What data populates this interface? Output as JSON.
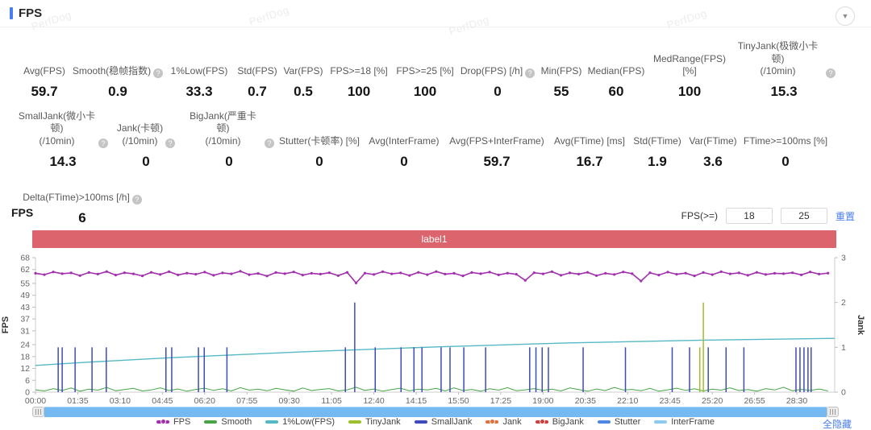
{
  "header": {
    "title": "FPS"
  },
  "watermark": {
    "text": "PerfDog"
  },
  "collapse_icon": "▼",
  "stats": {
    "rows": [
      {
        "items": [
          {
            "label": "Avg(FPS)",
            "value": "59.7"
          },
          {
            "label": "Smooth(稳帧指数)",
            "help": true,
            "value": "0.9"
          },
          {
            "label": "1%Low(FPS)",
            "value": "33.3"
          },
          {
            "label": "Std(FPS)",
            "value": "0.7"
          },
          {
            "label": "Var(FPS)",
            "value": "0.5"
          },
          {
            "label": "FPS>=18 [%]",
            "value": "100"
          },
          {
            "label": "FPS>=25 [%]",
            "value": "100"
          },
          {
            "label": "Drop(FPS) [/h]",
            "help": true,
            "value": "0"
          },
          {
            "label": "Min(FPS)",
            "value": "55"
          },
          {
            "label": "Median(FPS)",
            "value": "60"
          },
          {
            "label": "MedRange(FPS)[%]",
            "value": "100"
          },
          {
            "label": "TinyJank(极微小卡顿)\n(/10min)",
            "help": true,
            "value": "15.3"
          }
        ]
      },
      {
        "items": [
          {
            "label": "SmallJank(微小卡顿)\n(/10min)",
            "help": true,
            "value": "14.3"
          },
          {
            "label": "Jank(卡顿)\n(/10min)",
            "help": true,
            "value": "0"
          },
          {
            "label": "BigJank(严重卡顿)\n(/10min)",
            "help": true,
            "value": "0"
          },
          {
            "label": "Stutter(卡顿率) [%]",
            "value": "0"
          },
          {
            "label": "Avg(InterFrame)",
            "value": "0"
          },
          {
            "label": "Avg(FPS+InterFrame)",
            "value": "59.7"
          },
          {
            "label": "Avg(FTime) [ms]",
            "value": "16.7"
          },
          {
            "label": "Std(FTime)",
            "value": "1.9"
          },
          {
            "label": "Var(FTime)",
            "value": "3.6"
          },
          {
            "label": "FTime>=100ms [%]",
            "value": "0"
          }
        ]
      },
      {
        "items": [
          {
            "label": "Delta(FTime)>100ms [/h]",
            "help": true,
            "value": "6"
          }
        ]
      }
    ]
  },
  "chart_section": {
    "title": "FPS",
    "filter_label": "FPS(>=)",
    "filter_inputs": [
      "18",
      "25"
    ],
    "reset_label": "重置",
    "hide_all_label": "全隐藏",
    "banner": {
      "text": "label1",
      "color": "#dc656d"
    }
  },
  "chart_data": {
    "type": "line",
    "title": "FPS / Jank timeline",
    "left_axis": {
      "label": "FPS",
      "ticks": [
        68,
        62,
        55,
        49,
        43,
        37,
        31,
        24,
        18,
        12,
        6,
        0
      ],
      "range": [
        0,
        68
      ]
    },
    "right_axis": {
      "label": "Jank",
      "ticks": [
        3,
        2,
        1,
        0
      ],
      "range": [
        0,
        3
      ]
    },
    "x_ticks": [
      "00:00",
      "01:35",
      "03:10",
      "04:45",
      "06:20",
      "07:55",
      "09:30",
      "11:05",
      "12:40",
      "14:15",
      "15:50",
      "17:25",
      "19:00",
      "20:35",
      "22:10",
      "23:45",
      "25:20",
      "26:55",
      "28:30"
    ],
    "x_tick_interval_s": 95,
    "x_range_seconds": [
      0,
      1795
    ],
    "grid": false,
    "legend_position": "bottom",
    "series": [
      {
        "name": "FPS",
        "color": "#a22fae",
        "axis": "left",
        "type": "noisy-line",
        "dot": true,
        "sample_step_s": 20,
        "values": [
          60.1,
          59.4,
          60.8,
          59.9,
          60.3,
          58.9,
          60.5,
          59.7,
          61.0,
          59.2,
          60.4,
          59.8,
          58.8,
          60.6,
          59.5,
          60.9,
          59.3,
          60.2,
          59.6,
          60.7,
          59.1,
          60.3,
          59.8,
          61.1,
          59.4,
          60.0,
          58.7,
          60.5,
          59.9,
          60.8,
          59.2,
          60.1,
          59.7,
          60.4,
          58.9,
          60.6,
          55.2,
          60.2,
          59.5,
          60.9,
          59.8,
          60.3,
          59.0,
          60.6,
          59.4,
          61.0,
          59.7,
          60.1,
          58.8,
          60.5,
          59.9,
          60.7,
          59.3,
          60.2,
          59.6,
          56.5,
          60.4,
          59.8,
          60.9,
          59.1,
          60.3,
          59.7,
          60.6,
          58.9,
          60.1,
          59.5,
          60.8,
          59.9,
          56.2,
          60.4,
          59.2,
          60.7,
          59.6,
          60.2,
          58.8,
          60.5,
          59.4,
          60.9,
          59.8,
          60.3,
          59.1,
          60.6,
          59.5,
          60.1,
          59.9,
          60.4,
          59.3,
          60.8,
          59.7,
          60.2
        ]
      },
      {
        "name": "Smooth",
        "color": "#47a447",
        "axis": "left",
        "type": "grass",
        "sample_step_s": 20,
        "values": [
          1.2,
          0.6,
          1.8,
          0.9,
          2.1,
          0.5,
          1.5,
          1.0,
          2.4,
          0.7,
          1.3,
          1.9,
          0.6,
          1.1,
          2.2,
          0.8,
          1.6,
          0.5,
          1.4,
          2.0,
          0.9,
          1.7,
          0.6,
          2.3,
          1.0,
          1.5,
          0.7,
          1.9,
          1.2,
          0.5,
          2.1,
          0.8,
          1.4,
          1.8,
          0.6,
          1.2,
          2.5,
          0.9,
          1.6,
          0.5,
          1.3,
          2.0,
          0.7,
          1.5,
          1.1,
          1.9,
          0.6,
          2.2,
          0.8,
          1.4,
          0.5,
          1.7,
          1.0,
          2.3,
          0.7,
          1.2,
          1.8,
          0.9,
          1.5,
          0.6,
          2.1,
          1.3,
          0.5,
          1.6,
          0.8,
          2.4,
          1.1,
          1.4,
          0.7,
          1.9,
          0.5,
          1.2,
          2.0,
          0.9,
          1.7,
          0.6,
          1.5,
          1.0,
          2.2,
          0.8,
          1.3,
          0.5,
          1.8,
          1.1,
          2.5,
          0.7,
          1.4,
          0.9,
          1.6,
          0.6
        ]
      },
      {
        "name": "1%Low(FPS)",
        "color": "#55b8c4",
        "axis": "left",
        "type": "smooth-line",
        "points": [
          [
            0,
            13.5
          ],
          [
            120,
            15.2
          ],
          [
            300,
            17.4
          ],
          [
            600,
            20.4
          ],
          [
            900,
            22.9
          ],
          [
            1200,
            24.9
          ],
          [
            1500,
            26.3
          ],
          [
            1795,
            27.2
          ]
        ]
      },
      {
        "name": "TinyJank",
        "color": "#9ebf2c",
        "axis": "right",
        "type": "spikes",
        "spikes": [
          [
            1492,
            1
          ],
          [
            1500,
            2
          ]
        ]
      },
      {
        "name": "SmallJank",
        "color": "#3d4cb8",
        "axis": "right",
        "type": "spikes",
        "spikes": [
          [
            51,
            1
          ],
          [
            60,
            1
          ],
          [
            89,
            1
          ],
          [
            127,
            1
          ],
          [
            159,
            1
          ],
          [
            293,
            1
          ],
          [
            306,
            1
          ],
          [
            366,
            1
          ],
          [
            379,
            1
          ],
          [
            430,
            1
          ],
          [
            696,
            1
          ],
          [
            717,
            2
          ],
          [
            763,
            1
          ],
          [
            821,
            1
          ],
          [
            850,
            1
          ],
          [
            868,
            1
          ],
          [
            911,
            1
          ],
          [
            931,
            1
          ],
          [
            962,
            1
          ],
          [
            1011,
            1
          ],
          [
            1110,
            1
          ],
          [
            1124,
            1
          ],
          [
            1138,
            1
          ],
          [
            1152,
            1
          ],
          [
            1230,
            1
          ],
          [
            1325,
            1
          ],
          [
            1430,
            1
          ],
          [
            1469,
            1
          ],
          [
            1511,
            1
          ],
          [
            1551,
            1
          ],
          [
            1591,
            1
          ],
          [
            1708,
            1
          ],
          [
            1717,
            1
          ],
          [
            1726,
            1
          ],
          [
            1735,
            1
          ],
          [
            1742,
            1
          ]
        ]
      },
      {
        "name": "Jank",
        "color": "#e0703c",
        "axis": "right",
        "type": "spikes",
        "dot": true,
        "spikes": []
      },
      {
        "name": "BigJank",
        "color": "#d43b3b",
        "axis": "right",
        "type": "spikes",
        "dot": true,
        "spikes": []
      },
      {
        "name": "Stutter",
        "color": "#4f86e3",
        "axis": "right",
        "type": "spikes",
        "spikes": []
      },
      {
        "name": "InterFrame",
        "color": "#8ecaee",
        "axis": "left",
        "type": "line",
        "points": []
      }
    ]
  }
}
